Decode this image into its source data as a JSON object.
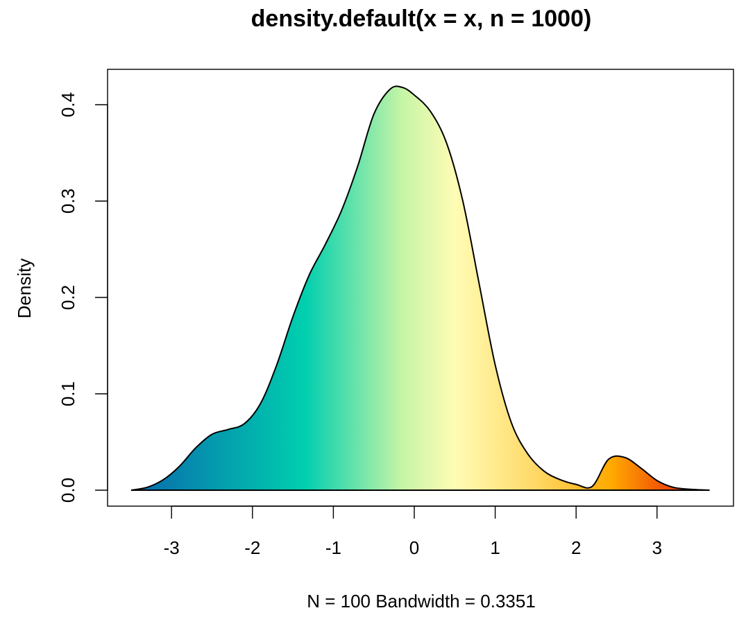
{
  "chart_data": {
    "type": "area",
    "title": "density.default(x = x, n = 1000)",
    "xlabel": "N = 100   Bandwidth = 0.3351",
    "ylabel": "Density",
    "xlim": [
      -3.5,
      3.65
    ],
    "ylim": [
      0,
      0.42
    ],
    "x_ticks": [
      -3,
      -2,
      -1,
      0,
      1,
      2,
      3
    ],
    "x_tick_labels": [
      "-3",
      "-2",
      "-1",
      "0",
      "1",
      "2",
      "3"
    ],
    "y_ticks": [
      0.0,
      0.1,
      0.2,
      0.3,
      0.4
    ],
    "y_tick_labels": [
      "0.0",
      "0.1",
      "0.2",
      "0.3",
      "0.4"
    ],
    "grid": false,
    "baseline": 0,
    "series": [
      {
        "x": [
          -3.5,
          -3.3,
          -3.1,
          -2.9,
          -2.7,
          -2.5,
          -2.3,
          -2.1,
          -1.9,
          -1.7,
          -1.5,
          -1.3,
          -1.1,
          -0.9,
          -0.7,
          -0.5,
          -0.3,
          -0.15,
          0.0,
          0.2,
          0.4,
          0.6,
          0.8,
          1.0,
          1.2,
          1.4,
          1.6,
          1.8,
          2.0,
          2.2,
          2.4,
          2.6,
          2.8,
          3.0,
          3.2,
          3.4,
          3.65
        ],
        "y": [
          0.0,
          0.003,
          0.011,
          0.025,
          0.044,
          0.058,
          0.063,
          0.069,
          0.09,
          0.13,
          0.18,
          0.223,
          0.255,
          0.29,
          0.336,
          0.39,
          0.416,
          0.418,
          0.41,
          0.393,
          0.36,
          0.3,
          0.215,
          0.13,
          0.07,
          0.038,
          0.02,
          0.011,
          0.006,
          0.004,
          0.032,
          0.034,
          0.023,
          0.01,
          0.003,
          0.001,
          0.0
        ]
      }
    ],
    "fill_gradient": [
      "#0868ac",
      "#00cfaf",
      "#c7f5a6",
      "#fffcb5",
      "#ffd866",
      "#ffaa00",
      "#f04a05",
      "#e03a3a"
    ],
    "colors": {
      "outline": "#000000",
      "axis": "#000000"
    }
  }
}
